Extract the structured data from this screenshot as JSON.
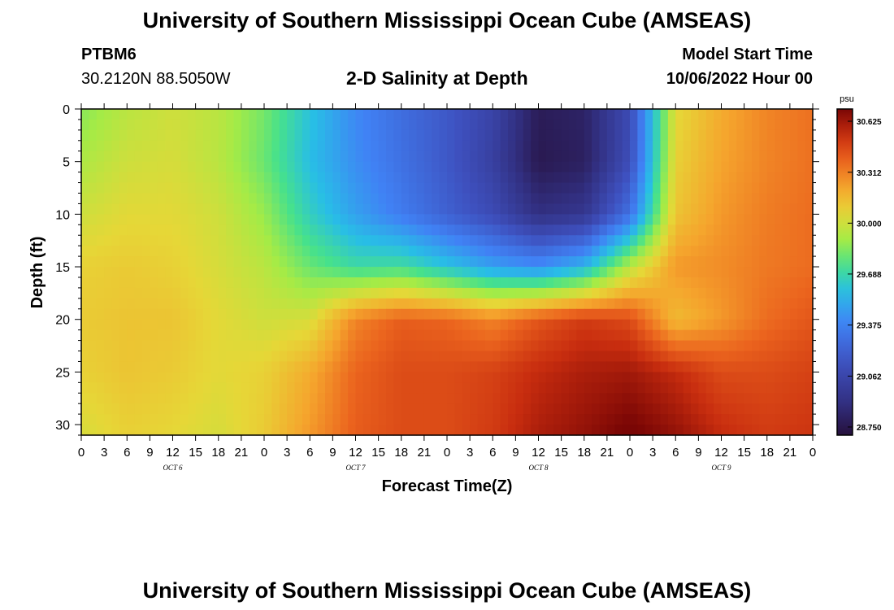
{
  "header": {
    "title": "University of Southern Mississippi Ocean Cube (AMSEAS)",
    "station": "PTBM6",
    "coordinates": "30.2120N  88.5050W",
    "subtitle": "2-D Salinity at Depth",
    "model_start_label": "Model Start Time",
    "model_start_value": "10/06/2022 Hour 00"
  },
  "footer": {
    "title": "University of Southern Mississippi Ocean Cube (AMSEAS)"
  },
  "colorbar": {
    "unit": "psu",
    "min": 28.7,
    "max": 30.7,
    "ticks": [
      "30.625",
      "30.312",
      "30.000",
      "29.688",
      "29.375",
      "29.062",
      "28.750"
    ]
  },
  "chart_data": {
    "type": "heatmap",
    "title": "2-D Salinity at Depth",
    "xlabel": "Forecast Time(Z)",
    "ylabel": "Depth (ft)",
    "x_tick_labels": [
      "0",
      "3",
      "6",
      "9",
      "12",
      "15",
      "18",
      "21",
      "0",
      "3",
      "6",
      "9",
      "12",
      "15",
      "18",
      "21",
      "0",
      "3",
      "6",
      "9",
      "12",
      "15",
      "18",
      "21",
      "0",
      "3",
      "6",
      "9",
      "12",
      "15",
      "18",
      "21",
      "0"
    ],
    "day_labels": [
      "OCT 6",
      "OCT 7",
      "OCT 8",
      "OCT 9"
    ],
    "y_ticks": [
      0,
      5,
      10,
      15,
      20,
      25,
      30
    ],
    "ylim": [
      0,
      31
    ],
    "x_hours": [
      0,
      6,
      12,
      18,
      24,
      30,
      36,
      42,
      48,
      54,
      60,
      66,
      72,
      78,
      84,
      90,
      96
    ],
    "depths_ft": [
      0,
      5,
      10,
      15,
      20,
      25,
      31
    ],
    "salinity_psu": [
      [
        29.85,
        29.95,
        30.0,
        29.95,
        29.82,
        29.6,
        29.4,
        29.28,
        29.18,
        29.05,
        28.78,
        28.82,
        29.1,
        30.05,
        30.2,
        30.3,
        30.35
      ],
      [
        29.92,
        30.0,
        30.02,
        29.95,
        29.8,
        29.58,
        29.42,
        29.3,
        29.18,
        29.02,
        28.76,
        28.8,
        29.12,
        30.08,
        30.22,
        30.3,
        30.35
      ],
      [
        30.0,
        30.05,
        30.05,
        30.0,
        29.88,
        29.65,
        29.48,
        29.35,
        29.22,
        29.1,
        28.9,
        28.95,
        29.3,
        30.12,
        30.25,
        30.32,
        30.36
      ],
      [
        30.08,
        30.1,
        30.08,
        30.02,
        29.95,
        29.8,
        29.7,
        29.72,
        29.6,
        29.48,
        29.42,
        29.55,
        29.95,
        30.25,
        30.28,
        30.33,
        30.36
      ],
      [
        30.1,
        30.12,
        30.12,
        30.05,
        30.0,
        30.02,
        30.3,
        30.4,
        30.38,
        30.3,
        30.42,
        30.5,
        30.45,
        30.15,
        30.25,
        30.36,
        30.42
      ],
      [
        30.08,
        30.12,
        30.1,
        30.05,
        30.08,
        30.2,
        30.38,
        30.45,
        30.45,
        30.48,
        30.55,
        30.6,
        30.62,
        30.55,
        30.45,
        30.45,
        30.48
      ],
      [
        30.02,
        30.08,
        30.06,
        30.02,
        30.1,
        30.25,
        30.4,
        30.45,
        30.45,
        30.5,
        30.6,
        30.65,
        30.72,
        30.65,
        30.55,
        30.5,
        30.52
      ]
    ]
  }
}
